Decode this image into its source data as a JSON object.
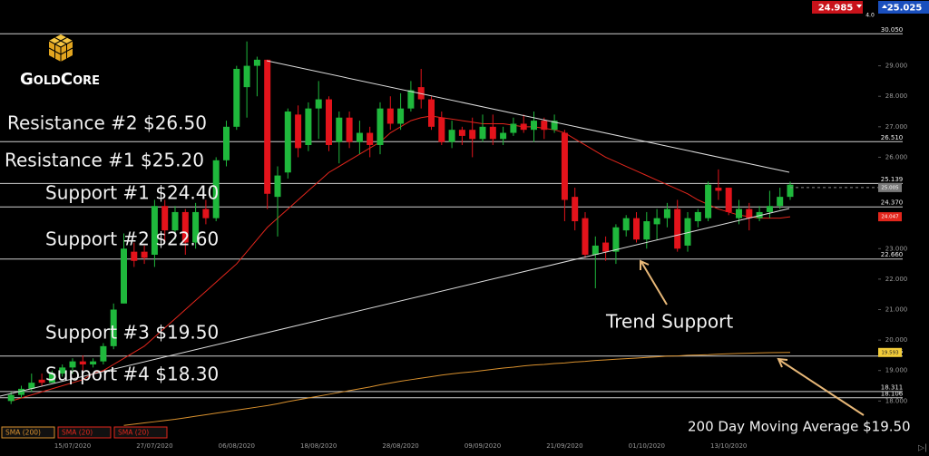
{
  "logo": "GoldCore",
  "quote": {
    "bid": "24.985",
    "spread": "4.0",
    "ask": "25.025"
  },
  "annotations": [
    "Resistance #2 $26.50",
    "Resistance #1 $25.20",
    "Support #1 $24.40",
    "Support #2 $22.60",
    "Support #3 $19.50",
    "Support #4 $18.30",
    "Trend Support",
    "200 Day Moving Average $19.50"
  ],
  "chart_data": {
    "type": "candlestick",
    "categories": [
      null,
      null,
      null,
      null,
      null,
      null,
      "15/07/2020",
      null,
      null,
      null,
      null,
      null,
      null,
      null,
      "27/07/2020",
      null,
      null,
      null,
      null,
      null,
      null,
      null,
      "06/08/2020",
      null,
      null,
      null,
      null,
      null,
      null,
      null,
      "18/08/2020",
      null,
      null,
      null,
      null,
      null,
      null,
      null,
      "28/08/2020",
      null,
      null,
      null,
      null,
      null,
      null,
      null,
      "09/09/2020",
      null,
      null,
      null,
      null,
      null,
      null,
      null,
      "21/09/2020",
      null,
      null,
      null,
      null,
      null,
      null,
      null,
      "01/10/2020",
      null,
      null,
      null,
      null,
      null,
      null,
      null,
      "13/10/2020",
      null,
      null,
      null,
      null,
      null,
      null
    ],
    "ohlc": [
      [
        18.0,
        18.3,
        17.9,
        18.2
      ],
      [
        18.2,
        18.5,
        18.1,
        18.4
      ],
      [
        18.4,
        18.9,
        18.3,
        18.6
      ],
      [
        18.7,
        18.9,
        18.5,
        18.6
      ],
      [
        18.6,
        19.0,
        18.6,
        18.9
      ],
      [
        18.9,
        19.2,
        18.8,
        19.1
      ],
      [
        19.1,
        19.4,
        18.9,
        19.3
      ],
      [
        19.3,
        19.5,
        19.0,
        19.2
      ],
      [
        19.2,
        19.4,
        19.1,
        19.3
      ],
      [
        19.3,
        19.9,
        19.2,
        19.8
      ],
      [
        19.8,
        21.2,
        19.7,
        21.0
      ],
      [
        21.2,
        23.5,
        21.2,
        23.0
      ],
      [
        22.9,
        23.2,
        22.4,
        22.6
      ],
      [
        22.9,
        23.1,
        22.5,
        22.7
      ],
      [
        22.8,
        24.6,
        22.4,
        24.4
      ],
      [
        24.4,
        24.6,
        23.2,
        23.6
      ],
      [
        23.6,
        24.4,
        23.3,
        24.2
      ],
      [
        24.2,
        24.3,
        22.8,
        23.2
      ],
      [
        23.2,
        24.5,
        23.0,
        24.2
      ],
      [
        24.3,
        24.6,
        23.8,
        24.0
      ],
      [
        24.0,
        26.0,
        23.9,
        25.9
      ],
      [
        25.9,
        27.2,
        25.7,
        27.0
      ],
      [
        27.0,
        29.0,
        26.9,
        28.9
      ],
      [
        28.3,
        29.8,
        27.3,
        29.0
      ],
      [
        29.0,
        29.3,
        28.0,
        29.2
      ],
      [
        29.2,
        29.2,
        24.3,
        24.8
      ],
      [
        24.7,
        25.7,
        23.4,
        25.4
      ],
      [
        25.5,
        27.6,
        25.3,
        27.5
      ],
      [
        27.4,
        27.7,
        26.0,
        26.3
      ],
      [
        26.4,
        27.8,
        26.2,
        27.6
      ],
      [
        27.6,
        28.5,
        26.6,
        27.9
      ],
      [
        27.9,
        28.0,
        26.2,
        26.4
      ],
      [
        26.5,
        27.5,
        25.8,
        27.3
      ],
      [
        27.3,
        27.5,
        26.3,
        26.5
      ],
      [
        26.5,
        27.2,
        26.1,
        26.8
      ],
      [
        26.8,
        27.0,
        26.0,
        26.4
      ],
      [
        26.4,
        27.8,
        26.1,
        27.6
      ],
      [
        27.6,
        28.0,
        26.9,
        27.1
      ],
      [
        27.1,
        28.1,
        26.9,
        27.6
      ],
      [
        27.6,
        28.5,
        27.5,
        28.2
      ],
      [
        28.3,
        28.9,
        27.6,
        27.9
      ],
      [
        27.9,
        28.0,
        26.9,
        27.0
      ],
      [
        27.3,
        27.5,
        26.4,
        26.5
      ],
      [
        26.5,
        27.2,
        26.3,
        26.9
      ],
      [
        26.9,
        27.0,
        26.4,
        26.7
      ],
      [
        26.9,
        27.3,
        26.0,
        26.6
      ],
      [
        26.6,
        27.4,
        26.5,
        27.0
      ],
      [
        27.0,
        27.4,
        26.4,
        26.6
      ],
      [
        26.6,
        27.0,
        26.4,
        26.8
      ],
      [
        26.8,
        27.3,
        26.7,
        27.1
      ],
      [
        27.1,
        27.4,
        26.8,
        26.9
      ],
      [
        26.9,
        27.5,
        26.5,
        27.2
      ],
      [
        27.2,
        27.3,
        26.6,
        26.9
      ],
      [
        26.9,
        27.4,
        26.8,
        27.2
      ],
      [
        26.8,
        26.9,
        23.9,
        24.6
      ],
      [
        24.7,
        25.0,
        23.6,
        23.9
      ],
      [
        24.0,
        24.2,
        22.7,
        22.8
      ],
      [
        22.8,
        23.4,
        21.7,
        23.1
      ],
      [
        23.2,
        23.4,
        22.6,
        22.9
      ],
      [
        22.9,
        23.8,
        22.5,
        23.7
      ],
      [
        23.6,
        24.1,
        23.4,
        24.0
      ],
      [
        24.0,
        24.2,
        23.2,
        23.3
      ],
      [
        23.3,
        24.2,
        23.0,
        23.9
      ],
      [
        23.8,
        24.3,
        23.3,
        24.0
      ],
      [
        24.0,
        24.5,
        23.7,
        24.3
      ],
      [
        24.3,
        24.6,
        22.9,
        23.0
      ],
      [
        23.1,
        24.2,
        22.9,
        24.0
      ],
      [
        23.9,
        24.3,
        23.7,
        24.2
      ],
      [
        24.0,
        25.2,
        23.9,
        25.1
      ],
      [
        25.0,
        25.6,
        24.6,
        24.9
      ],
      [
        25.0,
        25.0,
        24.1,
        24.2
      ],
      [
        24.0,
        24.6,
        23.8,
        24.3
      ],
      [
        24.3,
        24.5,
        23.6,
        24.0
      ],
      [
        24.0,
        24.4,
        23.9,
        24.2
      ],
      [
        24.2,
        24.9,
        24.0,
        24.4
      ],
      [
        24.4,
        25.0,
        24.3,
        24.7
      ],
      [
        24.7,
        25.2,
        24.6,
        25.1
      ]
    ],
    "up_color": "#1fb83c",
    "down_color": "#e3131b",
    "indicators": [
      {
        "name": "SMA (200)",
        "color": "#d9912e",
        "label_color": "#f2cc3a",
        "values": [
          null,
          null,
          null,
          null,
          null,
          null,
          null,
          null,
          null,
          null,
          null,
          17.2,
          17.24,
          17.28,
          17.32,
          17.36,
          17.4,
          17.45,
          17.5,
          17.55,
          17.6,
          17.65,
          17.7,
          17.75,
          17.8,
          17.85,
          17.91,
          17.98,
          18.04,
          18.1,
          18.16,
          18.22,
          18.28,
          18.34,
          18.4,
          18.46,
          18.53,
          18.59,
          18.65,
          18.7,
          18.75,
          18.8,
          18.85,
          18.89,
          18.93,
          18.96,
          19.0,
          19.04,
          19.08,
          19.11,
          19.15,
          19.18,
          19.2,
          19.23,
          19.25,
          19.28,
          19.3,
          19.33,
          19.35,
          19.37,
          19.39,
          19.41,
          19.43,
          19.45,
          19.47,
          19.48,
          19.5,
          19.51,
          19.52,
          19.54,
          19.55,
          19.56,
          19.57,
          19.58,
          19.585,
          19.59,
          19.593
        ]
      },
      {
        "name": "SMA (20)",
        "color": "#e3261c",
        "label_color": "#e3261c",
        "values": [
          18.0,
          18.1,
          18.2,
          18.3,
          18.4,
          18.5,
          18.6,
          18.7,
          18.9,
          19.0,
          19.2,
          19.4,
          19.6,
          19.8,
          20.1,
          20.4,
          20.7,
          21.0,
          21.3,
          21.6,
          21.9,
          22.2,
          22.5,
          22.9,
          23.3,
          23.7,
          24.0,
          24.3,
          24.6,
          24.9,
          25.2,
          25.5,
          25.7,
          25.9,
          26.1,
          26.3,
          26.5,
          26.8,
          27.0,
          27.2,
          27.3,
          27.35,
          27.3,
          27.25,
          27.2,
          27.15,
          27.1,
          27.1,
          27.1,
          27.05,
          27.0,
          27.0,
          26.95,
          26.9,
          26.8,
          26.6,
          26.4,
          26.2,
          26.0,
          25.85,
          25.7,
          25.55,
          25.4,
          25.25,
          25.1,
          24.95,
          24.8,
          24.6,
          24.45,
          24.3,
          24.2,
          24.1,
          24.05,
          24.0,
          24.0,
          24.0,
          24.047
        ]
      },
      {
        "name": "SMA (20)",
        "color": "#e3261c"
      }
    ],
    "price": 25.005,
    "levels": [
      {
        "value": 30.05,
        "label": "30.050"
      },
      {
        "value": 26.51,
        "label": "26.510"
      },
      {
        "value": 25.139,
        "label": "25.139"
      },
      {
        "value": 24.37,
        "label": "24.370"
      },
      {
        "value": 22.66,
        "label": "22.660"
      },
      {
        "value": 19.476,
        "label": "19.476"
      },
      {
        "value": 18.311,
        "label": "18.311"
      },
      {
        "value": 18.106,
        "label": "18.106"
      }
    ],
    "ylim": [
      16.82,
      31.16
    ],
    "yticks": [
      {
        "value": 18,
        "label": "18.000"
      },
      {
        "value": 19,
        "label": "19.000"
      },
      {
        "value": 20,
        "label": "20.000"
      },
      {
        "value": 21,
        "label": "21.000"
      },
      {
        "value": 22,
        "label": "22.000"
      },
      {
        "value": 23,
        "label": "23.000"
      },
      {
        "value": 26,
        "label": "26.000"
      },
      {
        "value": 27,
        "label": "27.000"
      },
      {
        "value": 28,
        "label": "28.000"
      },
      {
        "value": 29,
        "label": "29.000"
      }
    ]
  }
}
